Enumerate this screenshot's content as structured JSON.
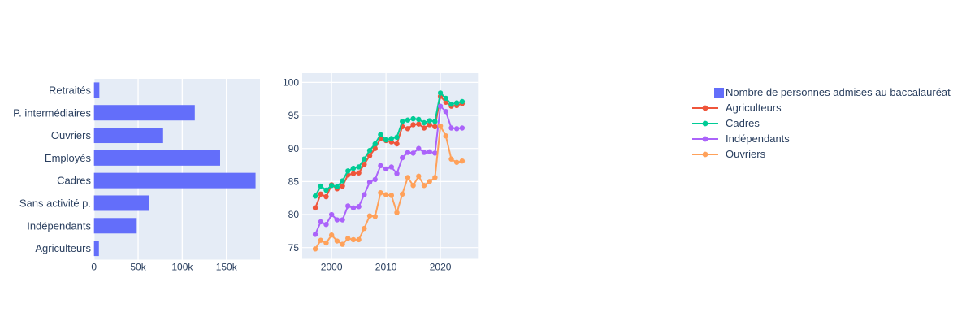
{
  "figure": {
    "background": "#FFFFFF",
    "plot_background": "#E5ECF6",
    "grid_color": "#FFFFFF",
    "text_color": "#2A3F5F"
  },
  "legend": {
    "items": [
      {
        "label": "Nombre de personnes admises au baccalauréat",
        "type": "bar",
        "color": "#636EFA"
      },
      {
        "label": "Agriculteurs",
        "type": "line",
        "color": "#EF553B"
      },
      {
        "label": "Cadres",
        "type": "line",
        "color": "#00CC96"
      },
      {
        "label": "Indépendants",
        "type": "line",
        "color": "#AB63FA"
      },
      {
        "label": "Ouvriers",
        "type": "line",
        "color": "#FFA15A"
      }
    ]
  },
  "chart_data": [
    {
      "type": "bar",
      "orientation": "horizontal",
      "name": "Nombre de personnes admises au baccalauréat",
      "color": "#636EFA",
      "categories": [
        "Retraités",
        "P. intermédiaires",
        "Ouvriers",
        "Employés",
        "Cadres",
        "Sans activité p.",
        "Indépendants",
        "Agriculteurs"
      ],
      "values": [
        6100,
        114200,
        78300,
        142900,
        183000,
        62300,
        48400,
        5600
      ],
      "xticks": {
        "values": [
          0,
          50000,
          100000,
          150000
        ],
        "labels": [
          "0",
          "50k",
          "100k",
          "150k"
        ]
      },
      "xlim": [
        0,
        188000
      ],
      "grid": true,
      "legend_position": "right"
    },
    {
      "type": "line",
      "x": [
        1997,
        1998,
        1999,
        2000,
        2001,
        2002,
        2003,
        2004,
        2005,
        2006,
        2007,
        2008,
        2009,
        2010,
        2011,
        2012,
        2013,
        2014,
        2015,
        2016,
        2017,
        2018,
        2019,
        2020,
        2021,
        2022,
        2023,
        2024
      ],
      "series": [
        {
          "name": "Agriculteurs",
          "color": "#EF553B",
          "values": [
            81.0,
            83.1,
            82.7,
            84.5,
            83.9,
            84.3,
            86.0,
            86.2,
            86.3,
            87.6,
            88.9,
            90.0,
            91.5,
            91.2,
            91.0,
            90.7,
            93.3,
            93.0,
            93.6,
            93.7,
            93.1,
            93.6,
            93.3,
            97.9,
            97.0,
            96.4,
            96.5,
            96.8
          ]
        },
        {
          "name": "Cadres",
          "color": "#00CC96",
          "values": [
            82.8,
            84.3,
            83.7,
            84.4,
            84.2,
            85.1,
            86.6,
            87.0,
            87.2,
            88.4,
            89.7,
            90.7,
            92.1,
            91.3,
            91.5,
            91.7,
            94.1,
            94.3,
            94.5,
            94.4,
            93.9,
            94.2,
            94.1,
            98.4,
            97.6,
            96.7,
            96.9,
            97.1
          ]
        },
        {
          "name": "Indépendants",
          "color": "#AB63FA",
          "values": [
            77.0,
            78.9,
            78.5,
            80.0,
            79.2,
            79.2,
            81.3,
            81.0,
            81.2,
            83.0,
            84.9,
            85.3,
            87.4,
            86.9,
            87.2,
            86.2,
            88.6,
            89.4,
            89.3,
            90.0,
            89.4,
            89.5,
            89.3,
            96.4,
            95.6,
            93.1,
            93.0,
            93.1
          ]
        },
        {
          "name": "Ouvriers",
          "color": "#FFA15A",
          "values": [
            74.8,
            76.1,
            75.7,
            76.9,
            76.0,
            75.5,
            76.4,
            76.2,
            76.2,
            77.9,
            79.8,
            79.7,
            83.3,
            83.0,
            82.9,
            80.3,
            83.1,
            85.6,
            84.4,
            85.8,
            84.4,
            85.0,
            85.6,
            93.4,
            91.9,
            88.4,
            87.9,
            88.1
          ]
        }
      ],
      "yticks": {
        "values": [
          75,
          80,
          85,
          90,
          95,
          100
        ],
        "labels": [
          "75",
          "80",
          "85",
          "90",
          "95",
          "100"
        ]
      },
      "xticks": {
        "values": [
          2000,
          2010,
          2020
        ],
        "labels": [
          "2000",
          "2010",
          "2020"
        ]
      },
      "ylim": [
        73.3,
        101.4
      ],
      "xlim": [
        1994.6,
        2026.9
      ],
      "grid": true
    }
  ]
}
